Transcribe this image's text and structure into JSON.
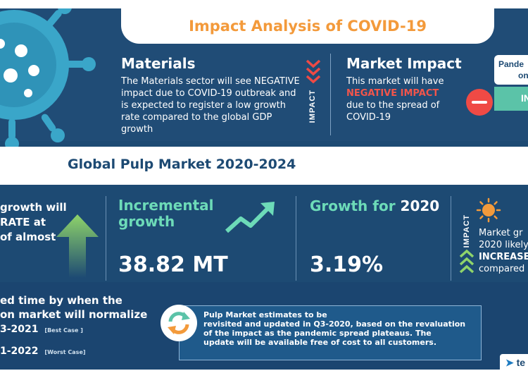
{
  "header": {
    "title": "Impact Analysis of COVID-19"
  },
  "materials": {
    "title": "Materials",
    "text": "The Materials sector will see NEGATIVE impact due to COVID-19 outbreak and is expected to register a low growth rate compared to the global GDP growth"
  },
  "impact_label": "IMPACT",
  "market_impact": {
    "title": "Market Impact",
    "line1": "This market will have",
    "negative": "NEGATIVE IMPACT",
    "line3": "due to the spread of COVID-19"
  },
  "pandemic": {
    "line1": "Pande",
    "line2": "on",
    "badge": "IN"
  },
  "global": {
    "title": "Global Pulp Market 2020-2024"
  },
  "growth_left": {
    "line1": "growth will",
    "line2": "RATE at",
    "line3": "of almost"
  },
  "incremental": {
    "title_line1": "Incremental",
    "title_line2": "growth",
    "value": "38.82 MT"
  },
  "growth2020": {
    "title": "Growth for",
    "year": "2020",
    "value": "3.19%"
  },
  "market_growth": {
    "line1": "Market gr",
    "line2": "2020 likely",
    "increase": "INCREASE",
    "line4": "compared"
  },
  "estimate": {
    "line1": "ed time by when the",
    "line2": "on market will normalize",
    "best": "3-2021",
    "best_label": "[Best Case ]",
    "worst": "1-2022",
    "worst_label": "[Worst Case]"
  },
  "note": {
    "line1": "Pulp Market estimates to be",
    "line2": "revisited and updated in Q3-2020, based on the revaluation",
    "line3": "of the impact as the pandemic spread plateaus. The",
    "line4": "update will be available free of cost to all customers."
  },
  "logo": {
    "text": "te"
  },
  "colors": {
    "navy": "#1d4a73",
    "orange": "#f39a3b",
    "teal": "#6ddbb8",
    "red": "#ef4a45"
  }
}
